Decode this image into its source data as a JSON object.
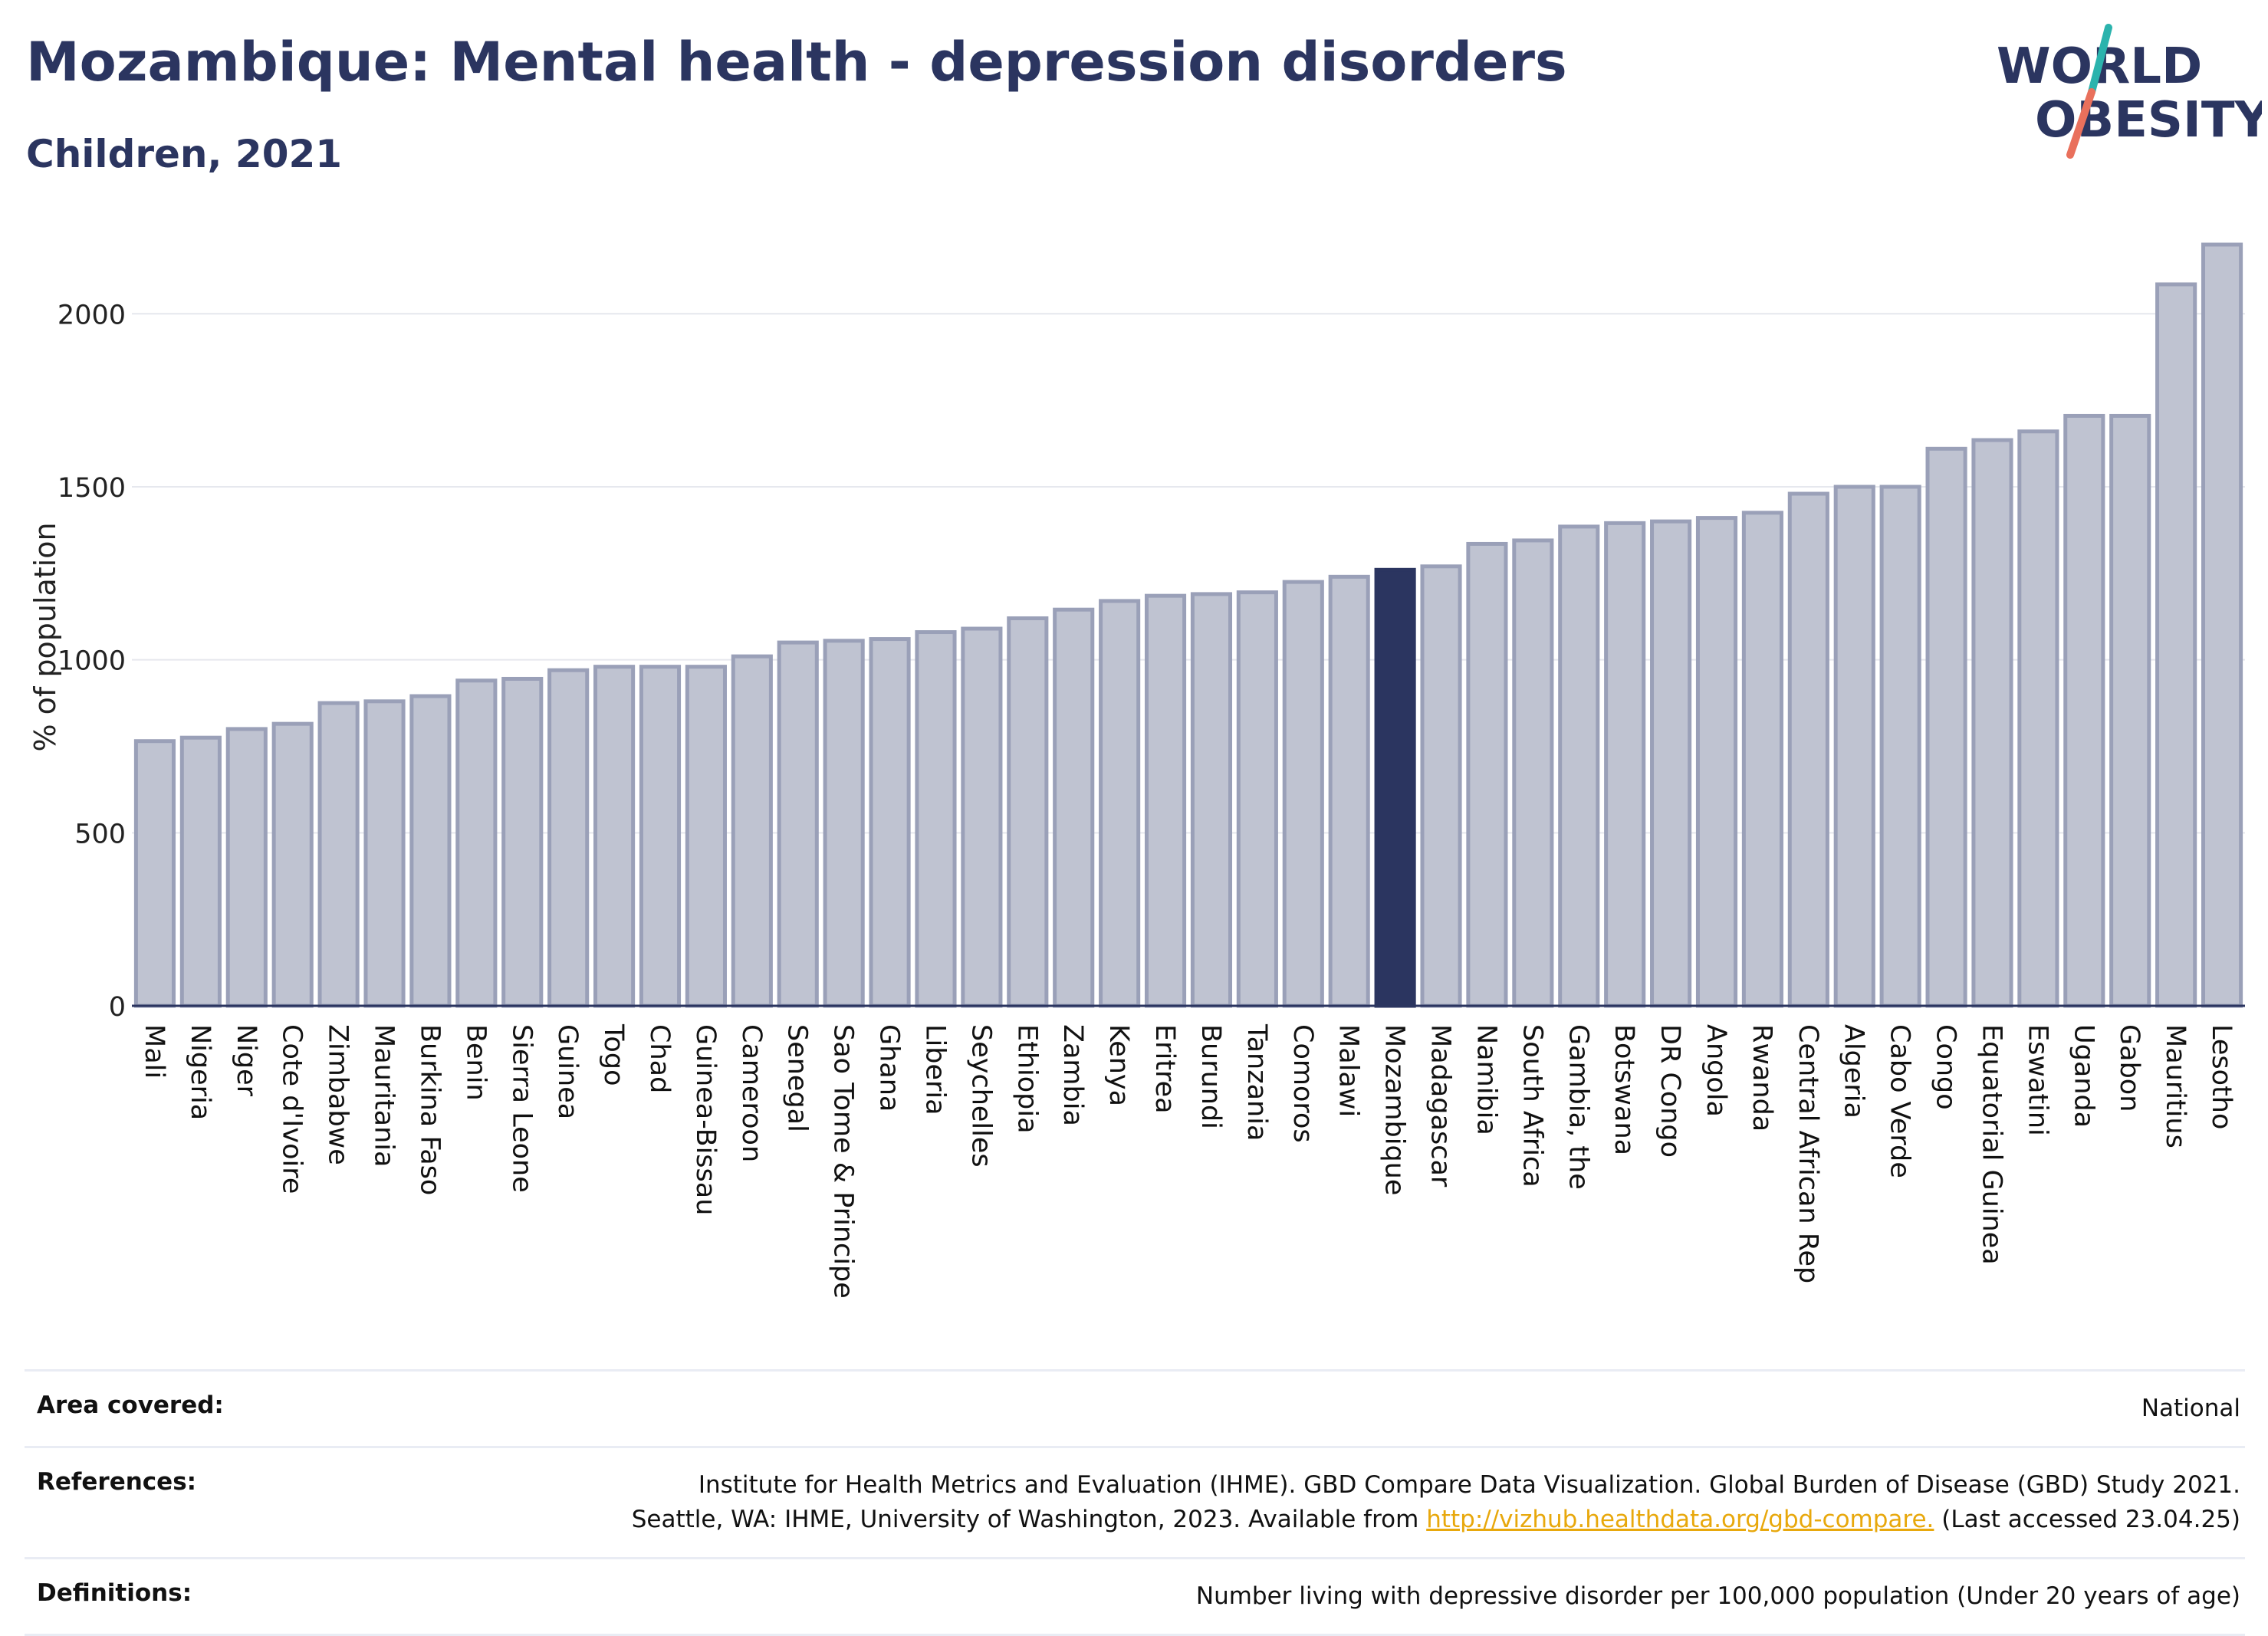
{
  "header": {
    "title": "Mozambique: Mental health - depression disorders",
    "subtitle": "Children, 2021"
  },
  "logo": {
    "line1": "WORLD",
    "line2": "OBESITY"
  },
  "chart_data": {
    "type": "bar",
    "title": "Mozambique: Mental health - depression disorders",
    "subtitle": "Children, 2021",
    "ylabel": "% of population",
    "xlabel": "",
    "ylim": [
      0,
      2220
    ],
    "yticks": [
      0,
      500,
      1000,
      1500,
      2000
    ],
    "grid": true,
    "highlight": "Mozambique",
    "colors": {
      "bar": "#bfc3d1",
      "bar_edge": "#9aa0b8",
      "highlight": "#2b3560"
    },
    "categories": [
      "Mali",
      "Nigeria",
      "Niger",
      "Cote d'Ivoire",
      "Zimbabwe",
      "Mauritania",
      "Burkina Faso",
      "Benin",
      "Sierra Leone",
      "Guinea",
      "Togo",
      "Chad",
      "Guinea-Bissau",
      "Cameroon",
      "Senegal",
      "Sao Tome & Principe",
      "Ghana",
      "Liberia",
      "Seychelles",
      "Ethiopia",
      "Zambia",
      "Kenya",
      "Eritrea",
      "Burundi",
      "Tanzania",
      "Comoros",
      "Malawi",
      "Mozambique",
      "Madagascar",
      "Namibia",
      "South Africa",
      "Gambia, the",
      "Botswana",
      "DR Congo",
      "Angola",
      "Rwanda",
      "Central African Rep",
      "Algeria",
      "Cabo Verde",
      "Congo",
      "Equatorial Guinea",
      "Eswatini",
      "Uganda",
      "Gabon",
      "Mauritius",
      "Lesotho"
    ],
    "values": [
      765,
      775,
      800,
      815,
      875,
      880,
      895,
      940,
      945,
      970,
      980,
      980,
      980,
      1010,
      1050,
      1055,
      1060,
      1080,
      1090,
      1120,
      1145,
      1170,
      1185,
      1190,
      1195,
      1225,
      1240,
      1260,
      1270,
      1335,
      1345,
      1385,
      1395,
      1400,
      1410,
      1425,
      1480,
      1500,
      1500,
      1610,
      1635,
      1660,
      1705,
      1705,
      2085,
      2200
    ]
  },
  "footer": {
    "area_label": "Area covered:",
    "area_value": "National",
    "references_label": "References:",
    "references_line1": "Institute for Health Metrics and Evaluation (IHME). GBD Compare Data Visualization. Global Burden of Disease (GBD) Study 2021.",
    "references_line2": "Seattle, WA: IHME, University of Washington, 2023. Available from",
    "references_link": "http://vizhub.healthdata.org/gbd-compare.",
    "references_tail": "(Last accessed 23.04.25)",
    "definitions_label": "Definitions:",
    "definitions_value": "Number living with depressive disorder per 100,000 population (Under 20 years of age)"
  }
}
